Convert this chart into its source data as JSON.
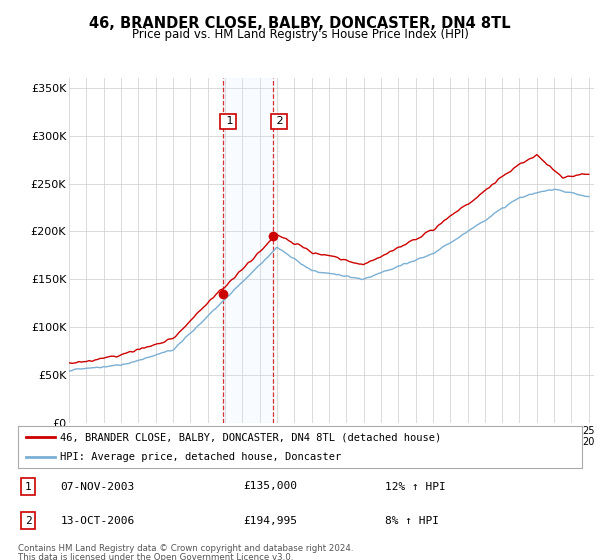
{
  "title": "46, BRANDER CLOSE, BALBY, DONCASTER, DN4 8TL",
  "subtitle": "Price paid vs. HM Land Registry's House Price Index (HPI)",
  "ylim": [
    0,
    360000
  ],
  "yticks": [
    0,
    50000,
    100000,
    150000,
    200000,
    250000,
    300000,
    350000
  ],
  "ytick_labels": [
    "£0",
    "£50K",
    "£100K",
    "£150K",
    "£200K",
    "£250K",
    "£300K",
    "£350K"
  ],
  "year_start": 1995,
  "year_end": 2025,
  "transaction1_year": 2003.875,
  "transaction1_price": 135000,
  "transaction1_date": "07-NOV-2003",
  "transaction1_hpi_text": "12% ↑ HPI",
  "transaction2_year": 2006.792,
  "transaction2_price": 194995,
  "transaction2_date": "13-OCT-2006",
  "transaction2_hpi_text": "8% ↑ HPI",
  "line_color_property": "#cc0000",
  "line_color_hpi": "#7bafd4",
  "shade_color": "#ddeeff",
  "vline_color": "#cc0000",
  "legend_label_property": "46, BRANDER CLOSE, BALBY, DONCASTER, DN4 8TL (detached house)",
  "legend_label_hpi": "HPI: Average price, detached house, Doncaster",
  "footer_line1": "Contains HM Land Registry data © Crown copyright and database right 2024.",
  "footer_line2": "This data is licensed under the Open Government Licence v3.0.",
  "background_color": "#ffffff",
  "grid_color": "#cccccc"
}
